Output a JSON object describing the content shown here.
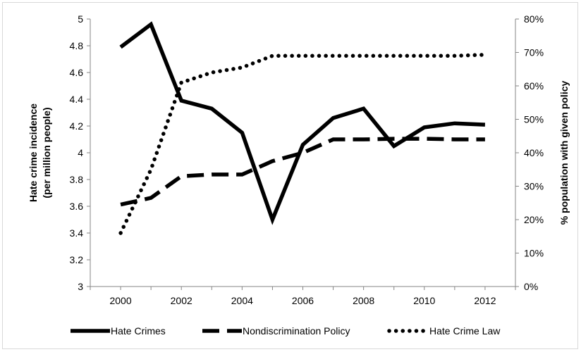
{
  "chart_data": {
    "type": "line",
    "x": [
      2000,
      2001,
      2002,
      2003,
      2004,
      2005,
      2006,
      2007,
      2008,
      2009,
      2010,
      2011,
      2012
    ],
    "x_ticks": [
      "2000",
      "2002",
      "2004",
      "2006",
      "2008",
      "2010",
      "2012"
    ],
    "ylabel_left": "Hate crime incidence\n(per million people)",
    "ylabel_right": "% population with given policy",
    "ylim_left": [
      3,
      5
    ],
    "ylim_right": [
      0,
      80
    ],
    "y_ticks_left": [
      "3",
      "3.2",
      "3.4",
      "3.6",
      "3.8",
      "4",
      "4.2",
      "4.4",
      "4.6",
      "4.8",
      "5"
    ],
    "y_ticks_right": [
      "0%",
      "10%",
      "20%",
      "30%",
      "40%",
      "50%",
      "60%",
      "70%",
      "80%"
    ],
    "grid": false,
    "legend_position": "bottom",
    "series": [
      {
        "name": "Hate Crimes",
        "axis": "left",
        "style": "solid",
        "values": [
          4.79,
          4.96,
          4.39,
          4.33,
          4.15,
          3.5,
          4.06,
          4.26,
          4.33,
          4.05,
          4.19,
          4.22,
          4.21
        ]
      },
      {
        "name": "Nondiscrimination Policy",
        "axis": "right",
        "style": "dashed",
        "values": [
          24.5,
          26.5,
          33,
          33.5,
          33.5,
          37.5,
          40,
          44,
          44,
          44.2,
          44.2,
          44,
          44
        ]
      },
      {
        "name": "Hate Crime Law",
        "axis": "right",
        "style": "dotted",
        "values": [
          16,
          35,
          61,
          64,
          65.5,
          69,
          69,
          69,
          69,
          69,
          69,
          69,
          69.3
        ]
      }
    ],
    "colors": {
      "line": "#000000",
      "axis": "#868686"
    }
  }
}
